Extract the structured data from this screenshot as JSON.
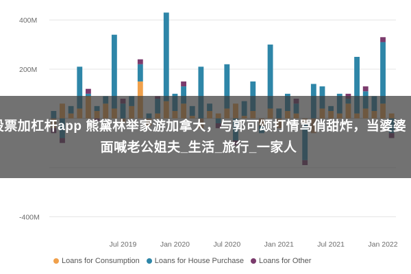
{
  "overlay": {
    "text": "股票加杠杆app 熊黛林举家游加拿大，与郭可颂打情骂俏甜炸，当婆婆面喊老公姐夫_生活_旅行_一家人"
  },
  "colors": {
    "consumption": "#f0a04b",
    "house": "#2e86a8",
    "other": "#7b3b6d",
    "neg_consumption": "#c8956a"
  },
  "chart_data": {
    "type": "bar",
    "stacked": true,
    "ylim": [
      -460,
      470
    ],
    "yticks": [
      400,
      200,
      0,
      -200,
      -400
    ],
    "ytick_labels": [
      "400M",
      "200M",
      "",
      "",
      "-400M"
    ],
    "xticks": [
      {
        "index": 8,
        "label": "Jul 2019"
      },
      {
        "index": 14,
        "label": "Jan 2020"
      },
      {
        "index": 20,
        "label": "Jul 2020"
      },
      {
        "index": 26,
        "label": "Jan 2021"
      },
      {
        "index": 32,
        "label": "Jul 2021"
      },
      {
        "index": 38,
        "label": "Jan 2022"
      }
    ],
    "grid": true,
    "legend_position": "bottom",
    "series": [
      {
        "name": "Loans for Consumption",
        "color_key": "consumption",
        "values": [
          -40,
          60,
          20,
          40,
          90,
          30,
          60,
          40,
          -20,
          50,
          150,
          -30,
          20,
          70,
          30,
          60,
          10,
          -40,
          30,
          20,
          40,
          60,
          10,
          30,
          -30,
          40,
          -40,
          30,
          20,
          -20,
          -60,
          40,
          30,
          20,
          60,
          20,
          40,
          30,
          60,
          20
        ]
      },
      {
        "name": "Loans for House Purchase",
        "color_key": "house",
        "values": [
          30,
          -80,
          30,
          170,
          10,
          20,
          30,
          300,
          60,
          40,
          70,
          20,
          60,
          360,
          70,
          70,
          40,
          210,
          30,
          -20,
          180,
          -90,
          60,
          120,
          -30,
          260,
          40,
          70,
          40,
          -150,
          140,
          90,
          20,
          80,
          20,
          230,
          70,
          60,
          250,
          -60
        ]
      },
      {
        "name": "Loans for Other",
        "color_key": "other",
        "values": [
          -20,
          -20,
          0,
          0,
          20,
          -10,
          0,
          0,
          20,
          0,
          20,
          0,
          10,
          0,
          0,
          20,
          0,
          0,
          0,
          -20,
          0,
          -20,
          0,
          0,
          0,
          0,
          0,
          0,
          20,
          -20,
          0,
          0,
          0,
          0,
          20,
          0,
          20,
          0,
          20,
          -20
        ]
      }
    ]
  }
}
